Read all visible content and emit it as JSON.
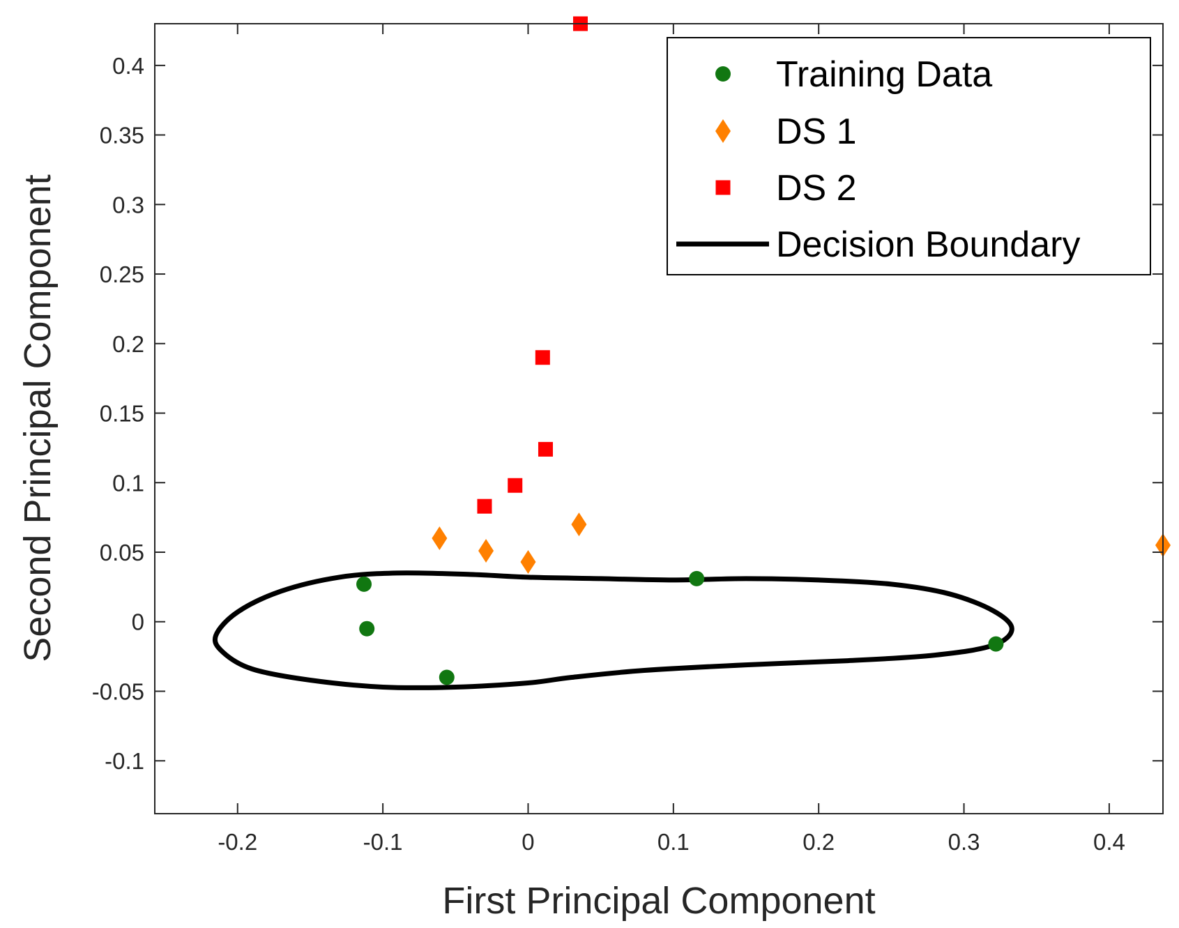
{
  "chart_data": {
    "type": "scatter",
    "title": "",
    "xlabel": "First Principal Component",
    "ylabel": "Second Principal Component",
    "xlim": [
      -0.257,
      0.437
    ],
    "ylim": [
      -0.138,
      0.43
    ],
    "x_ticks": [
      -0.2,
      -0.1,
      0,
      0.1,
      0.2,
      0.3,
      0.4
    ],
    "x_tick_labels": [
      "-0.2",
      "-0.1",
      "0",
      "0.1",
      "0.2",
      "0.3",
      "0.4"
    ],
    "y_ticks": [
      -0.1,
      -0.05,
      0,
      0.05,
      0.1,
      0.15,
      0.2,
      0.25,
      0.3,
      0.35,
      0.4
    ],
    "y_tick_labels": [
      "-0.1",
      "-0.05",
      "0",
      "0.05",
      "0.1",
      "0.15",
      "0.2",
      "0.25",
      "0.3",
      "0.35",
      "0.4"
    ],
    "grid": false,
    "legend_position": "top-right",
    "series": [
      {
        "name": "Training Data",
        "marker": "circle",
        "color": "#117711",
        "points": [
          [
            -0.113,
            0.027
          ],
          [
            -0.111,
            -0.005
          ],
          [
            -0.056,
            -0.04
          ],
          [
            0.116,
            0.031
          ],
          [
            0.322,
            -0.016
          ]
        ]
      },
      {
        "name": "DS 1",
        "marker": "diamond",
        "color": "#ff8000",
        "points": [
          [
            -0.061,
            0.06
          ],
          [
            -0.029,
            0.051
          ],
          [
            0.0,
            0.043
          ],
          [
            0.035,
            0.07
          ],
          [
            0.437,
            0.055
          ]
        ]
      },
      {
        "name": "DS 2",
        "marker": "square",
        "color": "#ff0000",
        "points": [
          [
            -0.03,
            0.083
          ],
          [
            -0.009,
            0.098
          ],
          [
            0.01,
            0.19
          ],
          [
            0.012,
            0.124
          ],
          [
            0.036,
            0.43
          ]
        ]
      },
      {
        "name": "Decision Boundary",
        "marker": "line",
        "color": "#000000",
        "closed": true,
        "points": [
          [
            -0.215,
            -0.01
          ],
          [
            -0.2,
            0.007
          ],
          [
            -0.17,
            0.022
          ],
          [
            -0.13,
            0.032
          ],
          [
            -0.09,
            0.035
          ],
          [
            -0.04,
            0.034
          ],
          [
            0.0,
            0.032
          ],
          [
            0.05,
            0.031
          ],
          [
            0.1,
            0.03
          ],
          [
            0.15,
            0.031
          ],
          [
            0.2,
            0.03
          ],
          [
            0.25,
            0.027
          ],
          [
            0.29,
            0.02
          ],
          [
            0.32,
            0.008
          ],
          [
            0.333,
            -0.005
          ],
          [
            0.32,
            -0.017
          ],
          [
            0.28,
            -0.024
          ],
          [
            0.22,
            -0.028
          ],
          [
            0.15,
            -0.031
          ],
          [
            0.08,
            -0.035
          ],
          [
            0.03,
            -0.04
          ],
          [
            0.0,
            -0.044
          ],
          [
            -0.05,
            -0.047
          ],
          [
            -0.1,
            -0.047
          ],
          [
            -0.15,
            -0.042
          ],
          [
            -0.19,
            -0.034
          ],
          [
            -0.21,
            -0.022
          ]
        ]
      }
    ]
  }
}
